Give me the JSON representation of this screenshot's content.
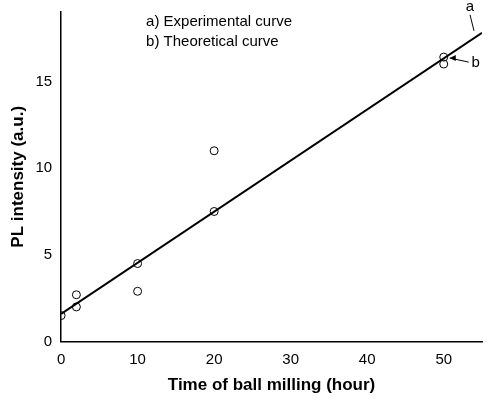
{
  "chart_data": {
    "type": "scatter",
    "x_label": "Time of ball milling (hour)",
    "y_label": "PL intensity (a.u.)",
    "series": [
      {
        "name": "a) Experimental curve",
        "type": "line",
        "color": "#000000",
        "marker": "none",
        "line_style": "solid",
        "x": [
          0,
          55
        ],
        "values": [
          1.6,
          17.8
        ]
      },
      {
        "name": "b) Theoretical curve",
        "type": "scatter",
        "color": "#000000",
        "marker": "circle",
        "x": [
          0,
          2,
          2,
          10,
          10,
          20,
          20,
          50,
          50
        ],
        "values": [
          1.5,
          2.7,
          2.0,
          4.5,
          2.9,
          11.0,
          7.5,
          16.0,
          16.4
        ]
      }
    ],
    "annotations": [
      {
        "text": "a",
        "series": "a) Experimental curve"
      },
      {
        "text": "b",
        "series": "b) Theoretical curve"
      }
    ],
    "xlim": [
      0,
      55
    ],
    "ylim": [
      0,
      19
    ],
    "xticks": [
      0,
      10,
      20,
      30,
      40,
      50
    ],
    "yticks": [
      0,
      5,
      10,
      15
    ],
    "grid": false,
    "legend": "upper left"
  }
}
